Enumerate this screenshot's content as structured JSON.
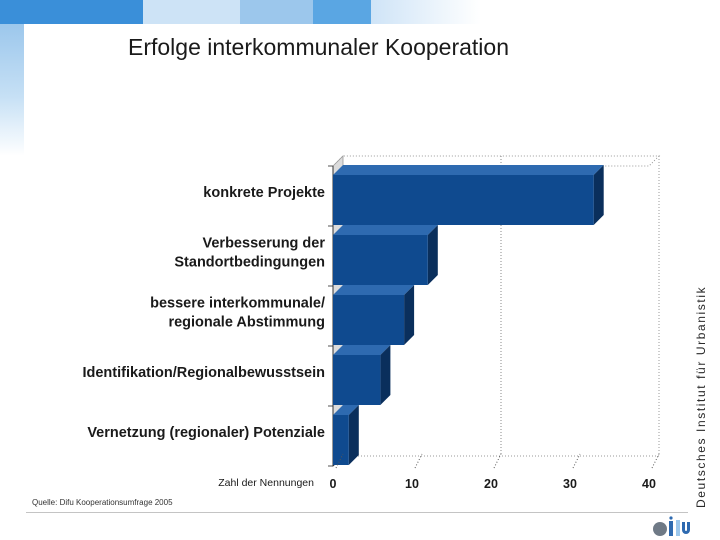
{
  "header": {
    "title": "Erfolge interkommunaler Kooperation"
  },
  "sidebar": {
    "text": "Deutsches Institut für Urbanistik"
  },
  "footer": {
    "source": "Quelle: Difu Kooperationsumfrage 2005"
  },
  "colors": {
    "bar_front": "#0f4a8f",
    "bar_top": "#2e6ab0",
    "bar_side": "#0a2f5c",
    "wall": "#dcdcdc"
  },
  "chart_data": {
    "type": "bar",
    "orientation": "horizontal",
    "title": "Erfolge interkommunaler Kooperation",
    "categories": [
      [
        "konkrete Projekte"
      ],
      [
        "Verbesserung der",
        "Standortbedingungen"
      ],
      [
        "bessere interkommunale/",
        "regionale Abstimmung"
      ],
      [
        "Identifikation/Regionalbewusstsein"
      ],
      [
        "Vernetzung (regionaler) Potenziale"
      ]
    ],
    "values": [
      33,
      12,
      9,
      6,
      2
    ],
    "xlabel": "Zahl der Nennungen",
    "xlim": [
      0,
      40
    ],
    "xticks": [
      0,
      10,
      20,
      30,
      40
    ],
    "gridlines": [
      20
    ],
    "grid": true
  }
}
